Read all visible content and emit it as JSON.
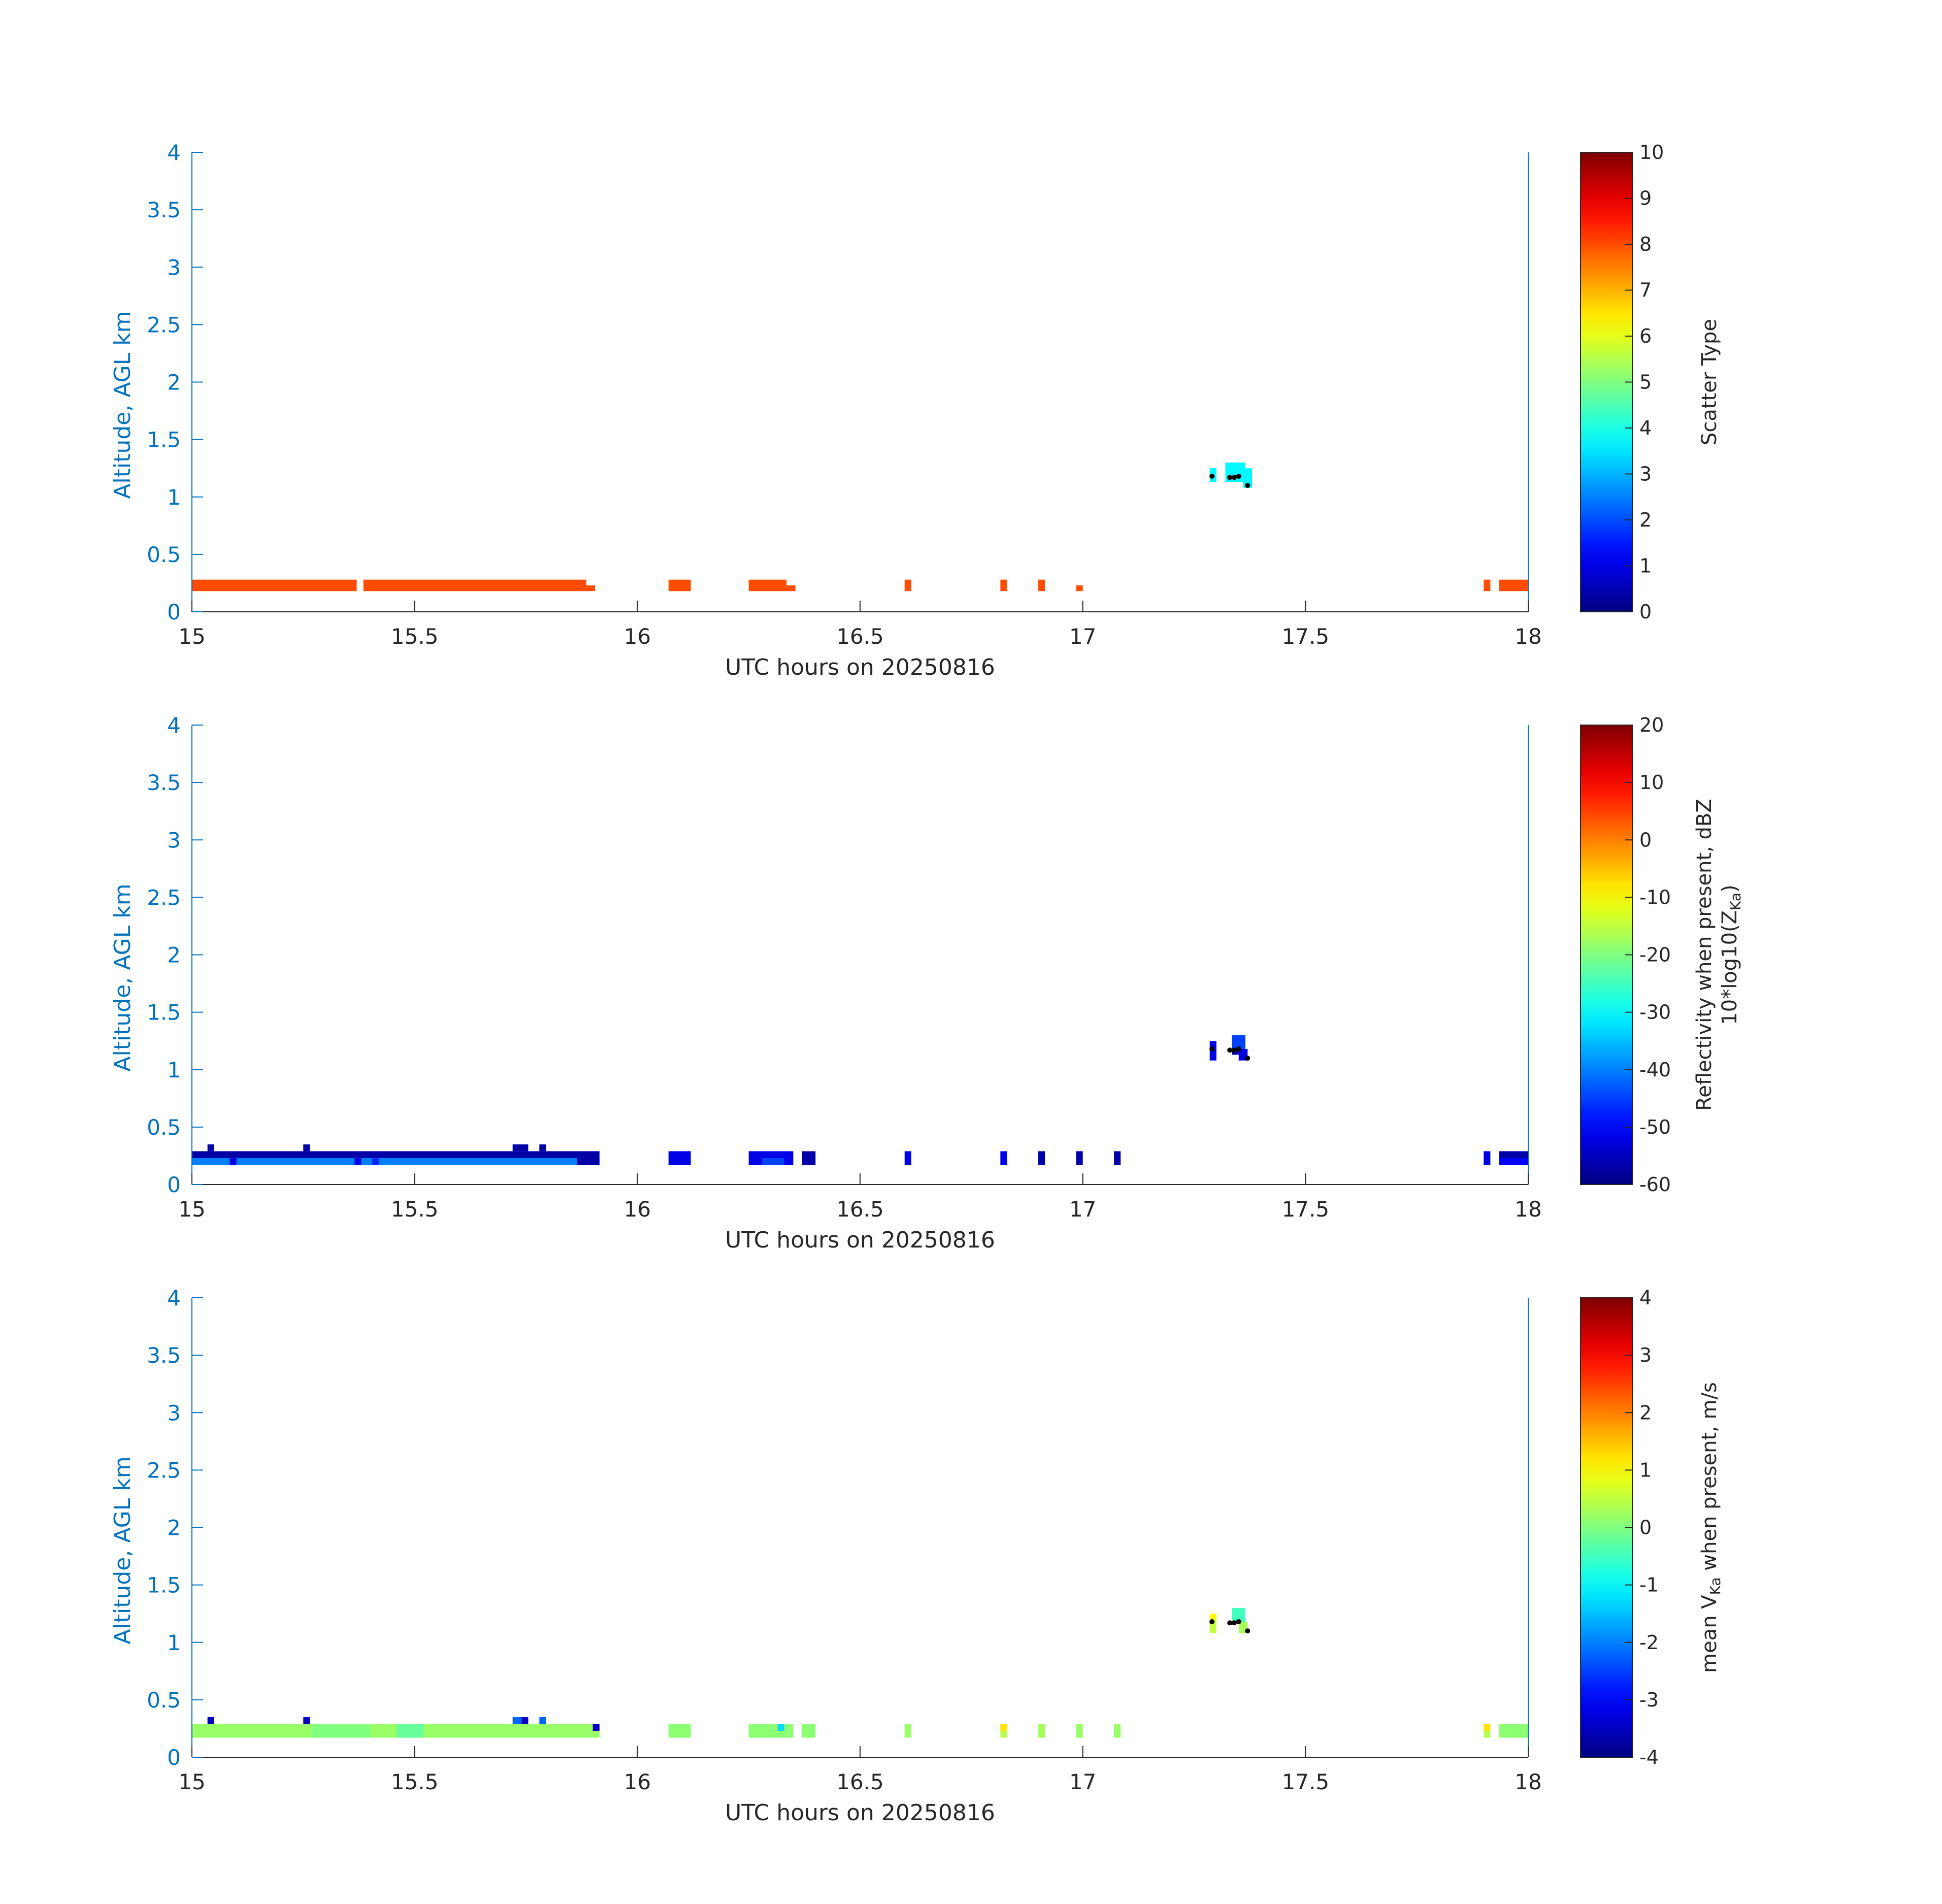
{
  "colors": {
    "axis_y": "#0072BD",
    "axis_x": "#262626",
    "colormap": "jet"
  },
  "chart_data": [
    {
      "type": "heatmap",
      "xlabel": "UTC hours on 20250816",
      "ylabel": "Altitude, AGL km",
      "xlim": [
        15,
        18
      ],
      "ylim": [
        0,
        4
      ],
      "xticks": [
        "15",
        "15.5",
        "16",
        "16.5",
        "17",
        "17.5",
        "18"
      ],
      "yticks": [
        "0",
        "0.5",
        "1",
        "1.5",
        "2",
        "2.5",
        "3",
        "3.5",
        "4"
      ],
      "colorbar": {
        "label": "Scatter Type",
        "label2": "",
        "range": [
          0,
          10
        ],
        "ticks": [
          "0",
          "1",
          "2",
          "3",
          "4",
          "5",
          "6",
          "7",
          "8",
          "9",
          "10"
        ]
      },
      "cells": [
        {
          "x0": 15.0,
          "x1": 15.37,
          "y0": 0.18,
          "y1": 0.28,
          "v": 8
        },
        {
          "x0": 15.385,
          "x1": 15.885,
          "y0": 0.18,
          "y1": 0.28,
          "v": 8
        },
        {
          "x0": 15.885,
          "x1": 15.905,
          "y0": 0.18,
          "y1": 0.23,
          "v": 8
        },
        {
          "x0": 16.07,
          "x1": 16.12,
          "y0": 0.18,
          "y1": 0.28,
          "v": 8
        },
        {
          "x0": 16.25,
          "x1": 16.335,
          "y0": 0.18,
          "y1": 0.28,
          "v": 8
        },
        {
          "x0": 16.335,
          "x1": 16.355,
          "y0": 0.18,
          "y1": 0.23,
          "v": 8
        },
        {
          "x0": 16.6,
          "x1": 16.615,
          "y0": 0.18,
          "y1": 0.28,
          "v": 8
        },
        {
          "x0": 16.815,
          "x1": 16.83,
          "y0": 0.18,
          "y1": 0.28,
          "v": 8
        },
        {
          "x0": 16.9,
          "x1": 16.915,
          "y0": 0.18,
          "y1": 0.28,
          "v": 8
        },
        {
          "x0": 16.985,
          "x1": 17.0,
          "y0": 0.18,
          "y1": 0.23,
          "v": 8
        },
        {
          "x0": 17.9,
          "x1": 17.915,
          "y0": 0.18,
          "y1": 0.28,
          "v": 8
        },
        {
          "x0": 17.935,
          "x1": 18.0,
          "y0": 0.18,
          "y1": 0.28,
          "v": 8
        },
        {
          "x0": 17.285,
          "x1": 17.3,
          "y0": 1.13,
          "y1": 1.25,
          "v": 3.7
        },
        {
          "x0": 17.32,
          "x1": 17.365,
          "y0": 1.18,
          "y1": 1.3,
          "v": 3.7
        },
        {
          "x0": 17.32,
          "x1": 17.36,
          "y0": 1.13,
          "y1": 1.18,
          "v": 3.7
        },
        {
          "x0": 17.36,
          "x1": 17.38,
          "y0": 1.08,
          "y1": 1.25,
          "v": 3.7
        }
      ],
      "dots": [
        {
          "x": 17.29,
          "y": 1.18
        },
        {
          "x": 17.33,
          "y": 1.17
        },
        {
          "x": 17.34,
          "y": 1.17
        },
        {
          "x": 17.35,
          "y": 1.18
        },
        {
          "x": 17.37,
          "y": 1.1
        }
      ]
    },
    {
      "type": "heatmap",
      "xlabel": "UTC hours on 20250816",
      "ylabel": "Altitude, AGL km",
      "xlim": [
        15,
        18
      ],
      "ylim": [
        0,
        4
      ],
      "xticks": [
        "15",
        "15.5",
        "16",
        "16.5",
        "17",
        "17.5",
        "18"
      ],
      "yticks": [
        "0",
        "0.5",
        "1",
        "1.5",
        "2",
        "2.5",
        "3",
        "3.5",
        "4"
      ],
      "colorbar": {
        "label": "Reflectivity when present, dBZ",
        "label2": "10*log10(Z",
        "label2_sub": "Ka",
        "label2_end": ")",
        "range": [
          -60,
          20
        ],
        "ticks": [
          "-60",
          "-50",
          "-40",
          "-30",
          "-20",
          "-10",
          "0",
          "10",
          "20"
        ]
      },
      "cells": [
        {
          "x0": 15.0,
          "x1": 15.915,
          "y0": 0.23,
          "y1": 0.29,
          "v": -57
        },
        {
          "x0": 15.0,
          "x1": 15.915,
          "y0": 0.17,
          "y1": 0.23,
          "v": -40
        },
        {
          "x0": 15.085,
          "x1": 15.1,
          "y0": 0.17,
          "y1": 0.23,
          "v": -52
        },
        {
          "x0": 15.365,
          "x1": 15.38,
          "y0": 0.17,
          "y1": 0.23,
          "v": -52
        },
        {
          "x0": 15.405,
          "x1": 15.42,
          "y0": 0.17,
          "y1": 0.23,
          "v": -47
        },
        {
          "x0": 15.865,
          "x1": 15.915,
          "y0": 0.17,
          "y1": 0.23,
          "v": -57
        },
        {
          "x0": 15.035,
          "x1": 15.05,
          "y0": 0.29,
          "y1": 0.35,
          "v": -57
        },
        {
          "x0": 15.25,
          "x1": 15.265,
          "y0": 0.29,
          "y1": 0.35,
          "v": -57
        },
        {
          "x0": 15.72,
          "x1": 15.755,
          "y0": 0.29,
          "y1": 0.35,
          "v": -57
        },
        {
          "x0": 15.78,
          "x1": 15.795,
          "y0": 0.29,
          "y1": 0.35,
          "v": -57
        },
        {
          "x0": 16.07,
          "x1": 16.12,
          "y0": 0.17,
          "y1": 0.29,
          "v": -52
        },
        {
          "x0": 16.25,
          "x1": 16.35,
          "y0": 0.17,
          "y1": 0.29,
          "v": -52
        },
        {
          "x0": 16.28,
          "x1": 16.33,
          "y0": 0.17,
          "y1": 0.23,
          "v": -45
        },
        {
          "x0": 16.37,
          "x1": 16.4,
          "y0": 0.17,
          "y1": 0.29,
          "v": -57
        },
        {
          "x0": 16.6,
          "x1": 16.615,
          "y0": 0.17,
          "y1": 0.29,
          "v": -52
        },
        {
          "x0": 16.815,
          "x1": 16.83,
          "y0": 0.17,
          "y1": 0.29,
          "v": -52
        },
        {
          "x0": 16.9,
          "x1": 16.915,
          "y0": 0.17,
          "y1": 0.29,
          "v": -57
        },
        {
          "x0": 16.985,
          "x1": 17.0,
          "y0": 0.17,
          "y1": 0.29,
          "v": -57
        },
        {
          "x0": 17.07,
          "x1": 17.085,
          "y0": 0.17,
          "y1": 0.29,
          "v": -57
        },
        {
          "x0": 17.9,
          "x1": 17.915,
          "y0": 0.17,
          "y1": 0.29,
          "v": -52
        },
        {
          "x0": 17.935,
          "x1": 18.0,
          "y0": 0.23,
          "y1": 0.29,
          "v": -57
        },
        {
          "x0": 17.935,
          "x1": 18.0,
          "y0": 0.17,
          "y1": 0.23,
          "v": -50
        },
        {
          "x0": 17.285,
          "x1": 17.3,
          "y0": 1.08,
          "y1": 1.25,
          "v": -52
        },
        {
          "x0": 17.335,
          "x1": 17.365,
          "y0": 1.18,
          "y1": 1.3,
          "v": -45
        },
        {
          "x0": 17.335,
          "x1": 17.35,
          "y0": 1.13,
          "y1": 1.18,
          "v": -57
        },
        {
          "x0": 17.35,
          "x1": 17.37,
          "y0": 1.08,
          "y1": 1.18,
          "v": -52
        }
      ],
      "dots": [
        {
          "x": 17.29,
          "y": 1.18
        },
        {
          "x": 17.33,
          "y": 1.17
        },
        {
          "x": 17.34,
          "y": 1.17
        },
        {
          "x": 17.35,
          "y": 1.18
        },
        {
          "x": 17.37,
          "y": 1.1
        }
      ]
    },
    {
      "type": "heatmap",
      "xlabel": "UTC hours on 20250816",
      "ylabel": "Altitude, AGL km",
      "xlim": [
        15,
        18
      ],
      "ylim": [
        0,
        4
      ],
      "xticks": [
        "15",
        "15.5",
        "16",
        "16.5",
        "17",
        "17.5",
        "18"
      ],
      "yticks": [
        "0",
        "0.5",
        "1",
        "1.5",
        "2",
        "2.5",
        "3",
        "3.5",
        "4"
      ],
      "colorbar": {
        "label": "mean V",
        "label_sub": "Ka",
        "label_end": " when present, m/s",
        "label2": "",
        "range": [
          -4,
          4
        ],
        "ticks": [
          "-4",
          "-3",
          "-2",
          "-1",
          "0",
          "1",
          "2",
          "3",
          "4"
        ]
      },
      "cells": [
        {
          "x0": 15.0,
          "x1": 15.915,
          "y0": 0.17,
          "y1": 0.29,
          "v": 0.2
        },
        {
          "x0": 15.27,
          "x1": 15.4,
          "y0": 0.17,
          "y1": 0.29,
          "v": 0.0
        },
        {
          "x0": 15.46,
          "x1": 15.52,
          "y0": 0.17,
          "y1": 0.29,
          "v": -0.2
        },
        {
          "x0": 15.035,
          "x1": 15.05,
          "y0": 0.29,
          "y1": 0.35,
          "v": -3.5
        },
        {
          "x0": 15.25,
          "x1": 15.265,
          "y0": 0.29,
          "y1": 0.35,
          "v": -3.5
        },
        {
          "x0": 15.72,
          "x1": 15.74,
          "y0": 0.29,
          "y1": 0.35,
          "v": -2.2
        },
        {
          "x0": 15.74,
          "x1": 15.755,
          "y0": 0.29,
          "y1": 0.35,
          "v": -3.5
        },
        {
          "x0": 15.78,
          "x1": 15.795,
          "y0": 0.29,
          "y1": 0.35,
          "v": -2.2
        },
        {
          "x0": 15.9,
          "x1": 15.915,
          "y0": 0.23,
          "y1": 0.29,
          "v": -3.5
        },
        {
          "x0": 16.07,
          "x1": 16.12,
          "y0": 0.17,
          "y1": 0.29,
          "v": 0.1
        },
        {
          "x0": 16.25,
          "x1": 16.35,
          "y0": 0.17,
          "y1": 0.29,
          "v": 0.1
        },
        {
          "x0": 16.315,
          "x1": 16.33,
          "y0": 0.23,
          "y1": 0.29,
          "v": -1.3
        },
        {
          "x0": 16.37,
          "x1": 16.4,
          "y0": 0.17,
          "y1": 0.29,
          "v": 0.1
        },
        {
          "x0": 16.6,
          "x1": 16.615,
          "y0": 0.17,
          "y1": 0.29,
          "v": 0.2
        },
        {
          "x0": 16.815,
          "x1": 16.83,
          "y0": 0.17,
          "y1": 0.29,
          "v": 0.4
        },
        {
          "x0": 16.815,
          "x1": 16.83,
          "y0": 0.23,
          "y1": 0.29,
          "v": 1.2
        },
        {
          "x0": 16.9,
          "x1": 16.915,
          "y0": 0.17,
          "y1": 0.29,
          "v": 0.3
        },
        {
          "x0": 16.985,
          "x1": 17.0,
          "y0": 0.17,
          "y1": 0.29,
          "v": 0.2
        },
        {
          "x0": 17.07,
          "x1": 17.085,
          "y0": 0.17,
          "y1": 0.29,
          "v": 0.2
        },
        {
          "x0": 17.9,
          "x1": 17.915,
          "y0": 0.17,
          "y1": 0.29,
          "v": 0.4
        },
        {
          "x0": 17.9,
          "x1": 17.915,
          "y0": 0.23,
          "y1": 0.29,
          "v": 1.2
        },
        {
          "x0": 17.935,
          "x1": 18.0,
          "y0": 0.17,
          "y1": 0.29,
          "v": 0.1
        },
        {
          "x0": 17.285,
          "x1": 17.3,
          "y0": 1.08,
          "y1": 1.25,
          "v": 0.5
        },
        {
          "x0": 17.285,
          "x1": 17.3,
          "y0": 1.2,
          "y1": 1.25,
          "v": 1.0
        },
        {
          "x0": 17.335,
          "x1": 17.365,
          "y0": 1.18,
          "y1": 1.3,
          "v": -0.5
        },
        {
          "x0": 17.35,
          "x1": 17.37,
          "y0": 1.08,
          "y1": 1.18,
          "v": 0.3
        }
      ],
      "dots": [
        {
          "x": 17.29,
          "y": 1.18
        },
        {
          "x": 17.33,
          "y": 1.17
        },
        {
          "x": 17.34,
          "y": 1.17
        },
        {
          "x": 17.35,
          "y": 1.18
        },
        {
          "x": 17.37,
          "y": 1.1
        }
      ]
    }
  ]
}
